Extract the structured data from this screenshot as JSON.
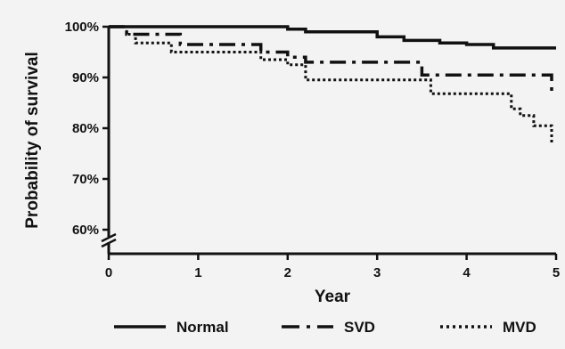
{
  "chart_data": {
    "type": "line",
    "subtype": "kaplan-meier step",
    "title": "",
    "xlabel": "Year",
    "ylabel": "Probability of survival",
    "xlim": [
      0,
      5
    ],
    "ylim": [
      60,
      100
    ],
    "y_axis_break": true,
    "x_ticks": [
      "0",
      "1",
      "2",
      "3",
      "4",
      "5"
    ],
    "y_ticks": [
      "60%",
      "70%",
      "80%",
      "90%",
      "100%"
    ],
    "grid": false,
    "legend_position": "bottom",
    "series": [
      {
        "name": "Normal",
        "style": "solid",
        "color": "#111111",
        "points": [
          [
            0,
            100
          ],
          [
            2,
            100
          ],
          [
            2,
            99.5
          ],
          [
            2.2,
            99.5
          ],
          [
            2.2,
            99
          ],
          [
            3,
            99
          ],
          [
            3,
            98
          ],
          [
            3.3,
            98
          ],
          [
            3.3,
            97.3
          ],
          [
            3.7,
            97.3
          ],
          [
            3.7,
            96.8
          ],
          [
            4,
            96.8
          ],
          [
            4,
            96.5
          ],
          [
            4.3,
            96.5
          ],
          [
            4.3,
            95.8
          ],
          [
            5,
            95.8
          ]
        ]
      },
      {
        "name": "SVD",
        "style": "dashdot",
        "color": "#111111",
        "points": [
          [
            0,
            100
          ],
          [
            0.2,
            100
          ],
          [
            0.2,
            98.5
          ],
          [
            0.8,
            98.5
          ],
          [
            0.8,
            96.5
          ],
          [
            1.7,
            96.5
          ],
          [
            1.7,
            95
          ],
          [
            2,
            95
          ],
          [
            2,
            94
          ],
          [
            2.2,
            94
          ],
          [
            2.2,
            93
          ],
          [
            3.5,
            93
          ],
          [
            3.5,
            90.5
          ],
          [
            4.95,
            90.5
          ],
          [
            4.95,
            86.5
          ]
        ]
      },
      {
        "name": "MVD",
        "style": "dotted",
        "color": "#111111",
        "points": [
          [
            0,
            100
          ],
          [
            0.2,
            100
          ],
          [
            0.2,
            98.5
          ],
          [
            0.3,
            98.5
          ],
          [
            0.3,
            96.8
          ],
          [
            0.7,
            96.8
          ],
          [
            0.7,
            95
          ],
          [
            1.7,
            95
          ],
          [
            1.7,
            93.5
          ],
          [
            2,
            93.5
          ],
          [
            2,
            92.5
          ],
          [
            2.2,
            92.5
          ],
          [
            2.2,
            89.5
          ],
          [
            3.6,
            89.5
          ],
          [
            3.6,
            86.8
          ],
          [
            4.5,
            86.8
          ],
          [
            4.5,
            83.8
          ],
          [
            4.6,
            83.8
          ],
          [
            4.6,
            82.5
          ],
          [
            4.75,
            82.5
          ],
          [
            4.75,
            80.5
          ],
          [
            4.95,
            80.5
          ],
          [
            4.95,
            77
          ]
        ]
      }
    ]
  }
}
